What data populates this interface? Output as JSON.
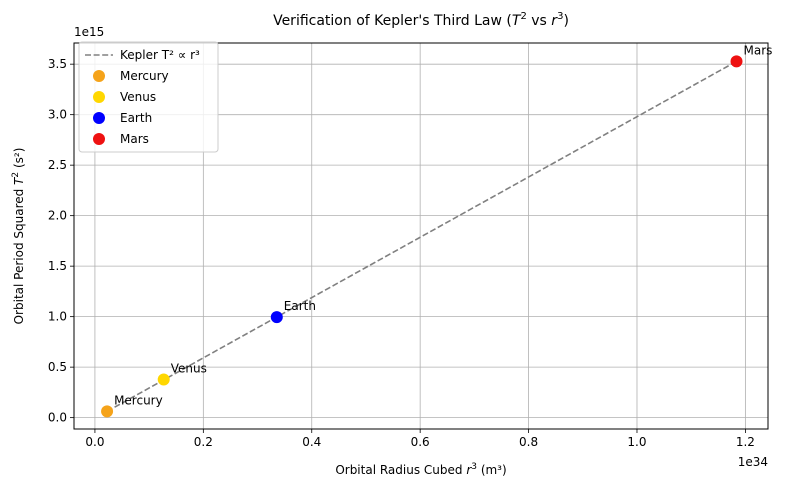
{
  "chart_data": {
    "type": "scatter",
    "title": "Verification of Kepler's Third Law (T² vs r³)",
    "title_parts": {
      "pre": "Verification of Kepler's Third Law (",
      "var1": "T",
      "sup1": "2",
      "mid": " vs ",
      "var2": "r",
      "sup2": "3",
      "post": ")"
    },
    "xlabel_parts": {
      "pre": "Orbital Radius Cubed ",
      "var": "r",
      "sup": "3",
      "post": " (m³)"
    },
    "ylabel_parts": {
      "pre": "Orbital Period Squared ",
      "var": "T",
      "sup": "2",
      "post": " (s²)"
    },
    "x_offset_text": "1e34",
    "y_offset_text": "1e15",
    "xlim": [
      -0.0386,
      1.2417
    ],
    "ylim": [
      -0.1125,
      3.7096
    ],
    "xticks": [
      0.0,
      0.2,
      0.4,
      0.6,
      0.8,
      1.0,
      1.2
    ],
    "xtick_labels": [
      "0.0",
      "0.2",
      "0.4",
      "0.6",
      "0.8",
      "1.0",
      "1.2"
    ],
    "yticks": [
      0.0,
      0.5,
      1.0,
      1.5,
      2.0,
      2.5,
      3.0,
      3.5
    ],
    "ytick_labels": [
      "0.0",
      "0.5",
      "1.0",
      "1.5",
      "2.0",
      "2.5",
      "3.0",
      "3.5"
    ],
    "grid": true,
    "legend_position": "upper-left",
    "fit_line": {
      "name": "Kepler T² ∝ r³",
      "color": "#808080",
      "style": "dashed",
      "x": [
        0.0224,
        1.1836
      ],
      "y": [
        0.0616,
        3.5279
      ]
    },
    "series": [
      {
        "name": "Mercury",
        "color": "#f5a31a",
        "x": 0.0224,
        "y": 0.0616,
        "label": "Mercury"
      },
      {
        "name": "Venus",
        "color": "#ffd700",
        "x": 0.1269,
        "y": 0.3778,
        "label": "Venus"
      },
      {
        "name": "Earth",
        "color": "#0000ff",
        "x": 0.3355,
        "y": 0.9957,
        "label": "Earth"
      },
      {
        "name": "Mars",
        "color": "#ee1111",
        "x": 1.1836,
        "y": 3.5279,
        "label": "Mars"
      }
    ]
  }
}
